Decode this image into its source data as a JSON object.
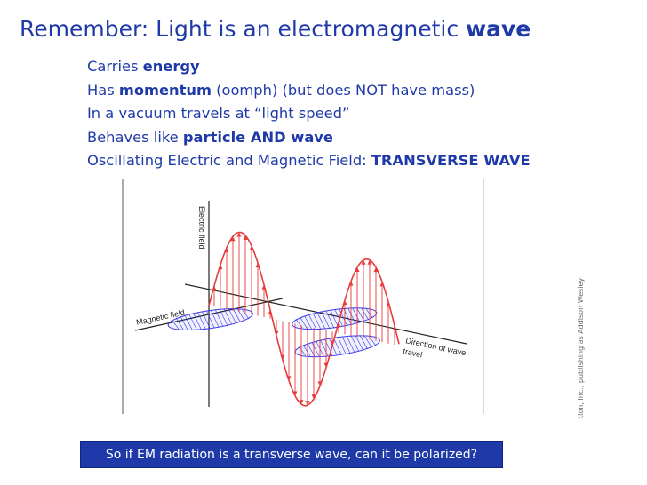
{
  "slide": {
    "title_prefix": "Remember:  Light is an electromagnetic ",
    "title_bold": "wave",
    "bullets": [
      {
        "pre": "Carries ",
        "bold": "energy",
        "post": ""
      },
      {
        "pre": "Has ",
        "bold": "momentum",
        "post": " (oomph) (but does NOT have mass)"
      },
      {
        "pre": "In a vacuum travels at “light speed”",
        "bold": "",
        "post": ""
      },
      {
        "pre": "Behaves like ",
        "bold": "particle AND wave",
        "post": ""
      },
      {
        "pre": "Oscillating Electric and Magnetic Field:  ",
        "bold": "TRANSVERSE WAVE",
        "post": ""
      }
    ],
    "question": "So if EM radiation is a transverse wave, can it be polarized?"
  },
  "figure": {
    "labels": {
      "electric": "Electric field",
      "magnetic": "Magnetic field",
      "direction_1": "Direction of wave",
      "direction_2": "travel"
    },
    "credit": "tion, Inc., publishing as Addison Wesley"
  },
  "colors": {
    "text": "#1f3aa8",
    "electric": "#e83a3a",
    "magnetic": "#3a3ae8",
    "banner": "#1f3aa8"
  }
}
